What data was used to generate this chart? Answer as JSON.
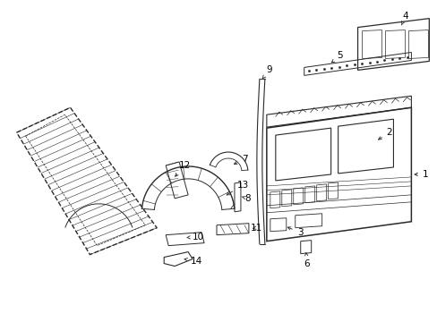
{
  "background_color": "#ffffff",
  "line_color": "#2a2a2a",
  "label_color": "#000000",
  "figsize": [
    4.89,
    3.6
  ],
  "dpi": 100,
  "lw_main": 0.9,
  "lw_thin": 0.5,
  "fontsize": 7.5
}
